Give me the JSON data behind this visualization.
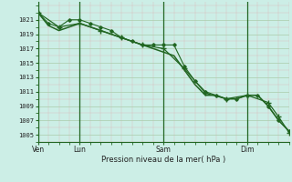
{
  "bg_color": "#cceee6",
  "grid_minor_color": "#ddbbbb",
  "grid_major_color": "#aaccaa",
  "line_color": "#226622",
  "xlabel": "Pression niveau de la mer( hPa )",
  "ylim": [
    1004.0,
    1023.5
  ],
  "yticks": [
    1005,
    1007,
    1009,
    1011,
    1013,
    1015,
    1017,
    1019,
    1021
  ],
  "xlim": [
    0.0,
    6.0
  ],
  "day_positions": [
    0.0,
    1.0,
    3.0,
    5.0
  ],
  "day_labels": [
    "Ven",
    "Lun",
    "Sam",
    "Dim"
  ],
  "curve1_x": [
    0.0,
    0.25,
    0.5,
    0.75,
    1.0,
    1.25,
    1.5,
    1.75,
    2.0,
    2.25,
    2.5,
    2.75,
    3.0,
    3.25,
    3.5,
    3.75,
    4.0,
    4.25,
    4.5,
    4.75,
    5.0,
    5.25,
    5.5,
    5.75,
    6.0
  ],
  "curve1_y": [
    1022.0,
    1020.5,
    1020.0,
    1021.0,
    1021.0,
    1020.5,
    1020.0,
    1019.5,
    1018.5,
    1018.0,
    1017.5,
    1017.5,
    1017.5,
    1017.5,
    1014.5,
    1012.5,
    1011.0,
    1010.5,
    1010.0,
    1010.0,
    1010.5,
    1010.5,
    1009.0,
    1007.0,
    1005.5
  ],
  "curve2_x": [
    0.0,
    0.25,
    0.5,
    0.75,
    1.0,
    1.25,
    1.5,
    1.75,
    2.0,
    2.25,
    2.5,
    2.75,
    3.0,
    3.25,
    3.5,
    3.75,
    4.0,
    4.25,
    4.5,
    4.75,
    5.0,
    5.25,
    5.5,
    5.75,
    6.0
  ],
  "curve2_y": [
    1022.0,
    1020.2,
    1019.5,
    1020.0,
    1020.5,
    1020.0,
    1019.5,
    1019.0,
    1018.5,
    1018.0,
    1017.5,
    1017.0,
    1016.5,
    1016.0,
    1014.0,
    1012.0,
    1010.5,
    1010.5,
    1010.0,
    1010.0,
    1010.5,
    1010.5,
    1009.0,
    1007.0,
    1005.5
  ],
  "curve3_x": [
    0.0,
    0.5,
    1.0,
    1.5,
    2.0,
    2.5,
    3.0,
    3.5,
    4.0,
    4.5,
    5.0,
    5.5,
    5.75,
    6.0
  ],
  "curve3_y": [
    1022.0,
    1020.0,
    1020.5,
    1019.5,
    1018.5,
    1017.5,
    1017.0,
    1014.2,
    1010.8,
    1010.0,
    1010.5,
    1009.5,
    1007.5,
    1005.3
  ]
}
